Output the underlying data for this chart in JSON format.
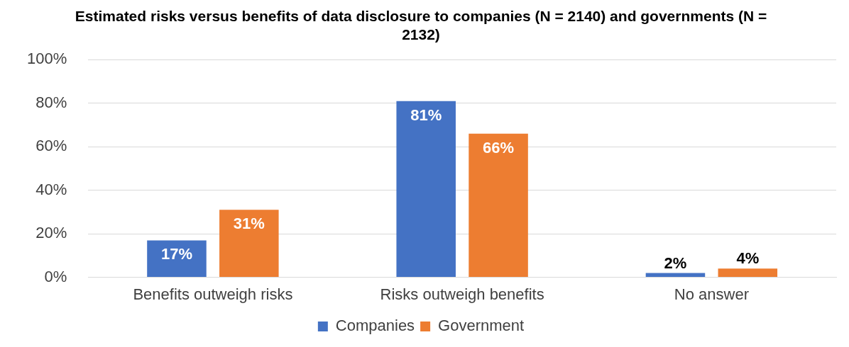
{
  "chart_data": {
    "type": "bar",
    "title": "Estimated risks versus benefits of data disclosure to companies (N = 2140) and governments (N = 2132)",
    "categories": [
      "Benefits outweigh risks",
      "Risks outweigh benefits",
      "No answer"
    ],
    "series": [
      {
        "name": "Companies",
        "color": "#4472c4",
        "values": [
          17,
          81,
          2
        ],
        "value_labels": [
          "17%",
          "81%",
          "2%"
        ]
      },
      {
        "name": "Government",
        "color": "#ed7d31",
        "values": [
          31,
          66,
          4
        ],
        "value_labels": [
          "31%",
          "66%",
          "4%"
        ]
      }
    ],
    "ylim": [
      0,
      100
    ],
    "yticks": [
      {
        "value": 0,
        "label": "0%"
      },
      {
        "value": 20,
        "label": "20%"
      },
      {
        "value": 40,
        "label": "40%"
      },
      {
        "value": 60,
        "label": "60%"
      },
      {
        "value": 80,
        "label": "80%"
      },
      {
        "value": 100,
        "label": "100%"
      }
    ],
    "grid": "y",
    "legend": "bottom"
  }
}
